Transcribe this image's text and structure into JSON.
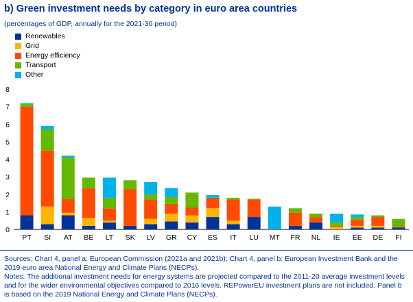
{
  "title": "b) Green investment needs by category in euro area countries",
  "subtitle": "(percentages of GDP, annually for the 2021-30 period)",
  "colors": {
    "Renewables": "#003299",
    "Grid": "#ffb400",
    "Energy efficiency": "#ff4b00",
    "Transport": "#65b800",
    "Other": "#00b1ea"
  },
  "chart_data": {
    "type": "bar",
    "stacked": true,
    "categories": [
      "PT",
      "SI",
      "AT",
      "BE",
      "LT",
      "SK",
      "LV",
      "GR",
      "CY",
      "ES",
      "IT",
      "LU",
      "MT",
      "FR",
      "NL",
      "IE",
      "EE",
      "DE",
      "FI"
    ],
    "series": [
      {
        "name": "Renewables",
        "values": [
          0.8,
          0.3,
          0.8,
          0.2,
          0.4,
          0.2,
          0.3,
          0.45,
          0.4,
          0.7,
          0.3,
          0.7,
          0.0,
          0.2,
          0.4,
          0.0,
          0.1,
          0.1,
          0.1
        ]
      },
      {
        "name": "Grid",
        "values": [
          0.0,
          1.0,
          0.15,
          0.45,
          0.1,
          0.0,
          0.3,
          0.45,
          0.4,
          0.5,
          0.2,
          0.0,
          0.0,
          0.0,
          0.0,
          0.15,
          0.1,
          0.1,
          0.0
        ]
      },
      {
        "name": "Energy efficiency",
        "values": [
          6.2,
          3.2,
          0.8,
          1.7,
          0.7,
          2.1,
          1.1,
          0.55,
          0.45,
          0.6,
          1.2,
          1.0,
          0.0,
          0.75,
          0.3,
          0.05,
          0.35,
          0.5,
          0.05
        ]
      },
      {
        "name": "Transport",
        "values": [
          0.15,
          1.2,
          2.35,
          0.6,
          0.6,
          0.5,
          0.3,
          0.4,
          0.85,
          0.0,
          0.1,
          0.05,
          0.0,
          0.25,
          0.2,
          0.2,
          0.15,
          0.1,
          0.45
        ]
      },
      {
        "name": "Other",
        "values": [
          0.05,
          0.2,
          0.1,
          0.0,
          1.15,
          0.0,
          0.7,
          0.5,
          0.0,
          0.15,
          0.0,
          0.0,
          1.3,
          0.0,
          0.0,
          0.5,
          0.15,
          0.0,
          0.0
        ]
      }
    ],
    "ylim": [
      0,
      8
    ],
    "yticks": [
      0,
      1,
      2,
      3,
      4,
      5,
      6,
      7,
      8
    ],
    "xlabel": "",
    "ylabel": "",
    "legend": "top-left",
    "grid": false
  },
  "footer": {
    "sources": "Sources: Chart 4, panel a: European Commission (2021a and 2021b); Chart 4, panel b: European Investment Bank and the 2019 euro area National Energy and Climate Plans (NECPs).",
    "notes": "Notes: The additional investment needs for energy systems are projected compared to the 2011-20 average investment levels and for the wider environmental objectives compared to 2016 levels. REPowerEU investment plans are not included. Panel b is based on the 2019 National Energy and Climate Plans (NECPs)."
  }
}
